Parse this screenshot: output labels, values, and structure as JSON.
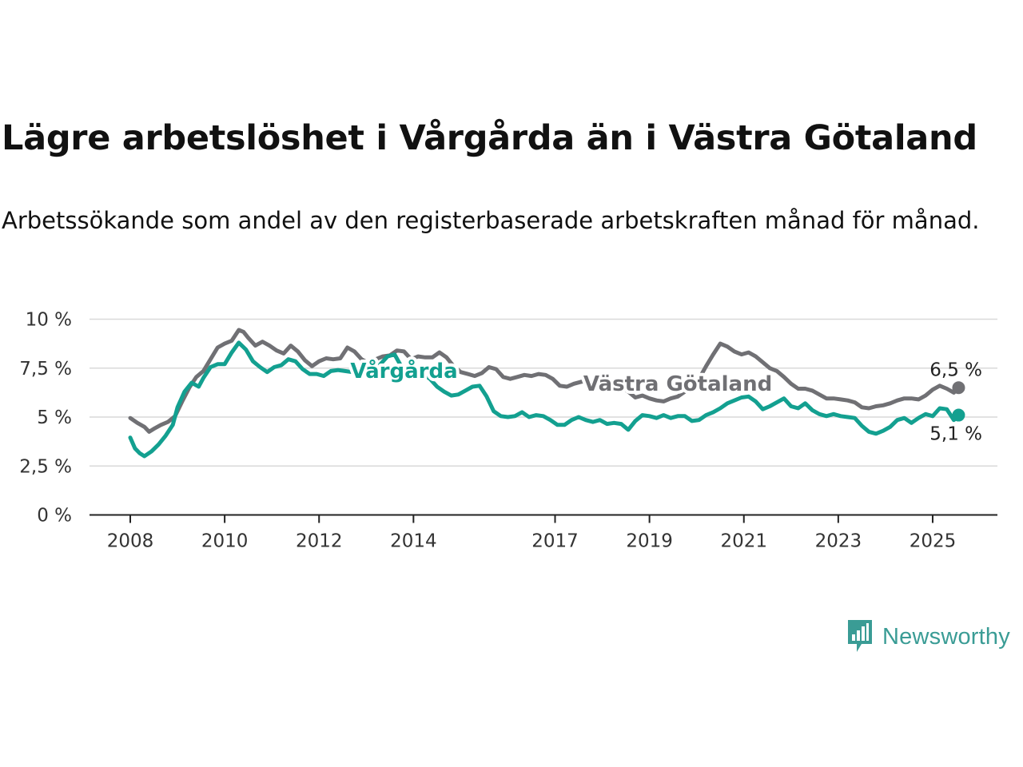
{
  "title": "Lägre arbetslöshet i Vårgårda än i Västra Götaland",
  "subtitle": "Arbetssökande som andel av den registerbaserade arbetskraften månad för månad.",
  "brand": {
    "name": "Newsworthy",
    "icon": "newsworthy-chart-bubble-icon",
    "color": "#3a9c95"
  },
  "colors": {
    "vastra": "#707074",
    "vargarda": "#13a090",
    "grid": "#d9d9d9",
    "axis": "#222222"
  },
  "chart_data": {
    "type": "line",
    "xlabel": "",
    "ylabel": "",
    "xlim": [
      2008,
      2025.6
    ],
    "ylim": [
      0,
      10
    ],
    "x_ticks": [
      {
        "value": 2008,
        "label": "2008"
      },
      {
        "value": 2010,
        "label": "2010"
      },
      {
        "value": 2012,
        "label": "2012"
      },
      {
        "value": 2014,
        "label": "2014"
      },
      {
        "value": 2017,
        "label": "2017"
      },
      {
        "value": 2019,
        "label": "2019"
      },
      {
        "value": 2021,
        "label": "2021"
      },
      {
        "value": 2023,
        "label": "2023"
      },
      {
        "value": 2025,
        "label": "2025"
      }
    ],
    "y_ticks": [
      {
        "value": 0,
        "label": "0 %"
      },
      {
        "value": 2.5,
        "label": "2,5 %"
      },
      {
        "value": 5,
        "label": "5 %"
      },
      {
        "value": 7.5,
        "label": "7,5 %"
      },
      {
        "value": 10,
        "label": "10 %"
      }
    ],
    "grid": true,
    "series": [
      {
        "name": "Västra Götaland",
        "color": "#707074",
        "end_label": "6,5 %",
        "points": [
          [
            2008.0,
            4.95
          ],
          [
            2008.15,
            4.7
          ],
          [
            2008.3,
            4.5
          ],
          [
            2008.4,
            4.25
          ],
          [
            2008.5,
            4.4
          ],
          [
            2008.65,
            4.6
          ],
          [
            2008.8,
            4.75
          ],
          [
            2008.95,
            5.05
          ],
          [
            2009.1,
            5.8
          ],
          [
            2009.25,
            6.5
          ],
          [
            2009.4,
            7.05
          ],
          [
            2009.55,
            7.35
          ],
          [
            2009.7,
            7.95
          ],
          [
            2009.85,
            8.55
          ],
          [
            2010.0,
            8.75
          ],
          [
            2010.15,
            8.9
          ],
          [
            2010.3,
            9.45
          ],
          [
            2010.4,
            9.35
          ],
          [
            2010.5,
            9.05
          ],
          [
            2010.65,
            8.65
          ],
          [
            2010.8,
            8.85
          ],
          [
            2010.95,
            8.65
          ],
          [
            2011.1,
            8.4
          ],
          [
            2011.25,
            8.25
          ],
          [
            2011.4,
            8.65
          ],
          [
            2011.55,
            8.35
          ],
          [
            2011.7,
            7.9
          ],
          [
            2011.85,
            7.6
          ],
          [
            2012.0,
            7.85
          ],
          [
            2012.15,
            8.0
          ],
          [
            2012.3,
            7.95
          ],
          [
            2012.45,
            8.0
          ],
          [
            2012.6,
            8.55
          ],
          [
            2012.75,
            8.35
          ],
          [
            2012.9,
            7.95
          ],
          [
            2013.05,
            7.75
          ],
          [
            2013.2,
            7.95
          ],
          [
            2013.35,
            8.1
          ],
          [
            2013.5,
            8.15
          ],
          [
            2013.65,
            8.4
          ],
          [
            2013.8,
            8.35
          ],
          [
            2013.95,
            7.95
          ],
          [
            2014.1,
            8.1
          ],
          [
            2014.25,
            8.05
          ],
          [
            2014.4,
            8.05
          ],
          [
            2014.55,
            8.3
          ],
          [
            2014.7,
            8.05
          ],
          [
            2014.85,
            7.6
          ],
          [
            2015.0,
            7.3
          ],
          [
            2015.15,
            7.2
          ],
          [
            2015.3,
            7.1
          ],
          [
            2015.45,
            7.25
          ],
          [
            2015.6,
            7.55
          ],
          [
            2015.75,
            7.45
          ],
          [
            2015.9,
            7.05
          ],
          [
            2016.05,
            6.95
          ],
          [
            2016.2,
            7.05
          ],
          [
            2016.35,
            7.15
          ],
          [
            2016.5,
            7.1
          ],
          [
            2016.65,
            7.2
          ],
          [
            2016.8,
            7.15
          ],
          [
            2016.95,
            6.95
          ],
          [
            2017.1,
            6.6
          ],
          [
            2017.25,
            6.55
          ],
          [
            2017.4,
            6.7
          ],
          [
            2017.55,
            6.8
          ],
          [
            2017.7,
            6.85
          ],
          [
            2017.85,
            6.9
          ],
          [
            2018.0,
            6.8
          ],
          [
            2018.15,
            6.55
          ],
          [
            2018.3,
            6.35
          ],
          [
            2018.45,
            6.45
          ],
          [
            2018.55,
            6.3
          ],
          [
            2018.7,
            6.0
          ],
          [
            2018.85,
            6.1
          ],
          [
            2019.0,
            5.95
          ],
          [
            2019.15,
            5.85
          ],
          [
            2019.3,
            5.8
          ],
          [
            2019.45,
            5.95
          ],
          [
            2019.6,
            6.05
          ],
          [
            2019.75,
            6.3
          ],
          [
            2019.9,
            6.55
          ],
          [
            2020.05,
            6.95
          ],
          [
            2020.2,
            7.6
          ],
          [
            2020.35,
            8.2
          ],
          [
            2020.5,
            8.75
          ],
          [
            2020.65,
            8.6
          ],
          [
            2020.8,
            8.35
          ],
          [
            2020.95,
            8.2
          ],
          [
            2021.1,
            8.3
          ],
          [
            2021.25,
            8.1
          ],
          [
            2021.4,
            7.8
          ],
          [
            2021.55,
            7.5
          ],
          [
            2021.7,
            7.35
          ],
          [
            2021.85,
            7.05
          ],
          [
            2022.0,
            6.7
          ],
          [
            2022.15,
            6.45
          ],
          [
            2022.3,
            6.45
          ],
          [
            2022.45,
            6.35
          ],
          [
            2022.6,
            6.15
          ],
          [
            2022.75,
            5.95
          ],
          [
            2022.9,
            5.95
          ],
          [
            2023.05,
            5.9
          ],
          [
            2023.2,
            5.85
          ],
          [
            2023.35,
            5.75
          ],
          [
            2023.5,
            5.5
          ],
          [
            2023.65,
            5.45
          ],
          [
            2023.8,
            5.55
          ],
          [
            2023.95,
            5.6
          ],
          [
            2024.1,
            5.7
          ],
          [
            2024.25,
            5.85
          ],
          [
            2024.4,
            5.95
          ],
          [
            2024.55,
            5.95
          ],
          [
            2024.7,
            5.9
          ],
          [
            2024.85,
            6.1
          ],
          [
            2025.0,
            6.4
          ],
          [
            2025.15,
            6.6
          ],
          [
            2025.3,
            6.45
          ],
          [
            2025.45,
            6.25
          ],
          [
            2025.55,
            6.5
          ]
        ]
      },
      {
        "name": "Vårgårda",
        "color": "#13a090",
        "end_label": "5,1 %",
        "points": [
          [
            2008.0,
            3.95
          ],
          [
            2008.1,
            3.4
          ],
          [
            2008.2,
            3.15
          ],
          [
            2008.3,
            3.0
          ],
          [
            2008.45,
            3.25
          ],
          [
            2008.6,
            3.6
          ],
          [
            2008.75,
            4.05
          ],
          [
            2008.9,
            4.6
          ],
          [
            2009.0,
            5.5
          ],
          [
            2009.15,
            6.3
          ],
          [
            2009.3,
            6.75
          ],
          [
            2009.45,
            6.55
          ],
          [
            2009.55,
            7.0
          ],
          [
            2009.7,
            7.55
          ],
          [
            2009.85,
            7.7
          ],
          [
            2010.0,
            7.7
          ],
          [
            2010.15,
            8.3
          ],
          [
            2010.3,
            8.8
          ],
          [
            2010.45,
            8.45
          ],
          [
            2010.6,
            7.85
          ],
          [
            2010.75,
            7.55
          ],
          [
            2010.9,
            7.3
          ],
          [
            2011.05,
            7.55
          ],
          [
            2011.2,
            7.65
          ],
          [
            2011.35,
            7.95
          ],
          [
            2011.5,
            7.85
          ],
          [
            2011.65,
            7.45
          ],
          [
            2011.8,
            7.2
          ],
          [
            2011.95,
            7.2
          ],
          [
            2012.1,
            7.1
          ],
          [
            2012.25,
            7.35
          ],
          [
            2012.4,
            7.4
          ],
          [
            2012.55,
            7.35
          ],
          [
            2012.7,
            7.3
          ],
          [
            2012.85,
            7.2
          ],
          [
            2013.0,
            7.1
          ],
          [
            2013.15,
            7.3
          ],
          [
            2013.3,
            7.7
          ],
          [
            2013.45,
            8.1
          ],
          [
            2013.6,
            8.2
          ],
          [
            2013.75,
            7.55
          ],
          [
            2013.9,
            7.3
          ],
          [
            2014.05,
            7.45
          ],
          [
            2014.2,
            7.2
          ],
          [
            2014.35,
            6.95
          ],
          [
            2014.5,
            6.55
          ],
          [
            2014.65,
            6.3
          ],
          [
            2014.8,
            6.1
          ],
          [
            2014.95,
            6.15
          ],
          [
            2015.1,
            6.35
          ],
          [
            2015.25,
            6.55
          ],
          [
            2015.4,
            6.6
          ],
          [
            2015.55,
            6.05
          ],
          [
            2015.7,
            5.3
          ],
          [
            2015.85,
            5.05
          ],
          [
            2016.0,
            5.0
          ],
          [
            2016.15,
            5.05
          ],
          [
            2016.3,
            5.25
          ],
          [
            2016.45,
            5.0
          ],
          [
            2016.6,
            5.1
          ],
          [
            2016.75,
            5.05
          ],
          [
            2016.9,
            4.85
          ],
          [
            2017.05,
            4.6
          ],
          [
            2017.2,
            4.6
          ],
          [
            2017.35,
            4.85
          ],
          [
            2017.5,
            5.0
          ],
          [
            2017.65,
            4.85
          ],
          [
            2017.8,
            4.75
          ],
          [
            2017.95,
            4.85
          ],
          [
            2018.1,
            4.65
          ],
          [
            2018.25,
            4.7
          ],
          [
            2018.4,
            4.65
          ],
          [
            2018.55,
            4.35
          ],
          [
            2018.7,
            4.8
          ],
          [
            2018.85,
            5.1
          ],
          [
            2019.0,
            5.05
          ],
          [
            2019.15,
            4.95
          ],
          [
            2019.3,
            5.1
          ],
          [
            2019.45,
            4.95
          ],
          [
            2019.6,
            5.05
          ],
          [
            2019.75,
            5.05
          ],
          [
            2019.9,
            4.8
          ],
          [
            2020.05,
            4.85
          ],
          [
            2020.2,
            5.1
          ],
          [
            2020.35,
            5.25
          ],
          [
            2020.5,
            5.45
          ],
          [
            2020.65,
            5.7
          ],
          [
            2020.8,
            5.85
          ],
          [
            2020.95,
            6.0
          ],
          [
            2021.1,
            6.05
          ],
          [
            2021.25,
            5.8
          ],
          [
            2021.4,
            5.4
          ],
          [
            2021.55,
            5.55
          ],
          [
            2021.7,
            5.75
          ],
          [
            2021.85,
            5.95
          ],
          [
            2022.0,
            5.55
          ],
          [
            2022.15,
            5.45
          ],
          [
            2022.3,
            5.7
          ],
          [
            2022.45,
            5.35
          ],
          [
            2022.6,
            5.15
          ],
          [
            2022.75,
            5.05
          ],
          [
            2022.9,
            5.15
          ],
          [
            2023.05,
            5.05
          ],
          [
            2023.2,
            5.0
          ],
          [
            2023.35,
            4.95
          ],
          [
            2023.5,
            4.55
          ],
          [
            2023.65,
            4.25
          ],
          [
            2023.8,
            4.15
          ],
          [
            2023.95,
            4.3
          ],
          [
            2024.1,
            4.5
          ],
          [
            2024.25,
            4.85
          ],
          [
            2024.4,
            4.95
          ],
          [
            2024.55,
            4.7
          ],
          [
            2024.7,
            4.95
          ],
          [
            2024.85,
            5.15
          ],
          [
            2025.0,
            5.05
          ],
          [
            2025.15,
            5.45
          ],
          [
            2025.3,
            5.4
          ],
          [
            2025.45,
            4.85
          ],
          [
            2025.55,
            5.1
          ]
        ]
      }
    ],
    "inline_labels": [
      {
        "series": "Vårgårda",
        "text": "Vårgårda",
        "x": 2013.8,
        "y": 7.0
      },
      {
        "series": "Västra Götaland",
        "text": "Västra Götaland",
        "x": 2019.6,
        "y": 6.35
      }
    ]
  }
}
